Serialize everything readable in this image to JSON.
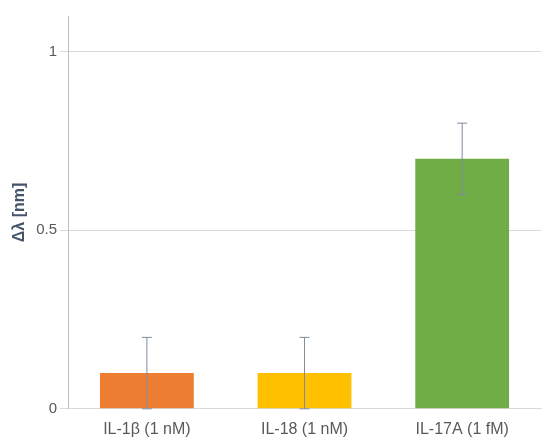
{
  "chart_data": {
    "type": "bar",
    "y_label": "Δλ [nm]",
    "categories": [
      "IL-1β (1 nM)",
      "IL-18 (1 nM)",
      "IL-17A (1 fM)"
    ],
    "values": [
      0.1,
      0.1,
      0.7
    ],
    "errors": [
      0.1,
      0.1,
      0.1
    ],
    "colors": [
      "#ed7d31",
      "#ffc000",
      "#70ad47"
    ],
    "ylim": [
      0,
      1.1
    ],
    "yticks": [
      0,
      0.5,
      1
    ],
    "grid": true
  }
}
